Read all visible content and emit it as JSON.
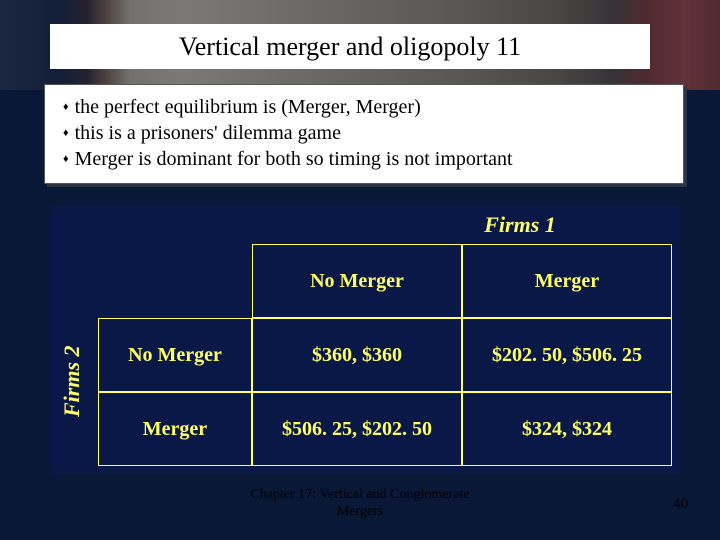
{
  "title": "Vertical merger and oligopoly 11",
  "bullets": [
    "the perfect equilibrium is (Merger, Merger)",
    "this is a prisoners' dilemma game",
    "Merger is dominant for both so timing is not important"
  ],
  "matrix": {
    "col_player_label": "Firms 1",
    "row_player_label": "Firms 2",
    "col_headers": [
      "No Merger",
      "Merger"
    ],
    "row_headers": [
      "No Merger",
      "Merger"
    ],
    "cells": [
      [
        "$360, $360",
        "$202. 50, $506. 25"
      ],
      [
        "$506. 25, $202. 50",
        "$324, $324"
      ]
    ],
    "colors": {
      "panel_bg": "#0a1848",
      "cell_border": "#ffff66",
      "text": "#ffff66"
    }
  },
  "footer": {
    "chapter": "Chapter 17: Vertical and Conglomerate Mergers",
    "page": "40"
  }
}
